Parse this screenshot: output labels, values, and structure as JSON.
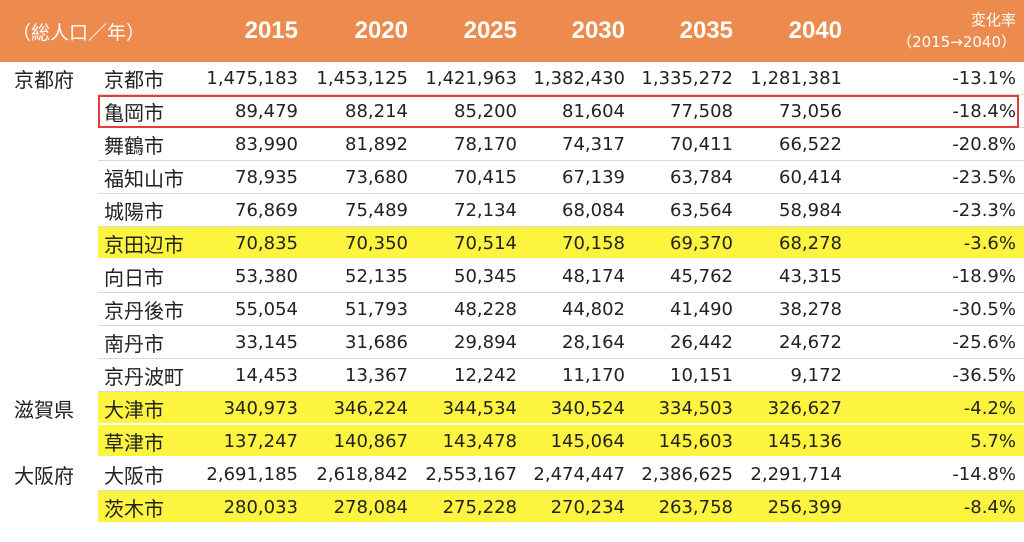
{
  "header": {
    "unit_label": "（総人口／年）",
    "years": [
      "2015",
      "2020",
      "2025",
      "2030",
      "2035",
      "2040"
    ],
    "change_label": "変化率",
    "change_range": "（2015→2040）"
  },
  "rows": [
    {
      "pref": "京都府",
      "city": "京都市",
      "values": [
        "1,475,183",
        "1,453,125",
        "1,421,963",
        "1,382,430",
        "1,335,272",
        "1,281,381"
      ],
      "change": "-13.1%",
      "highlight": false
    },
    {
      "pref": "",
      "city": "亀岡市",
      "values": [
        "89,479",
        "88,214",
        "85,200",
        "81,604",
        "77,508",
        "73,056"
      ],
      "change": "-18.4%",
      "highlight": false
    },
    {
      "pref": "",
      "city": "舞鶴市",
      "values": [
        "83,990",
        "81,892",
        "78,170",
        "74,317",
        "70,411",
        "66,522"
      ],
      "change": "-20.8%",
      "highlight": false
    },
    {
      "pref": "",
      "city": "福知山市",
      "values": [
        "78,935",
        "73,680",
        "70,415",
        "67,139",
        "63,784",
        "60,414"
      ],
      "change": "-23.5%",
      "highlight": false
    },
    {
      "pref": "",
      "city": "城陽市",
      "values": [
        "76,869",
        "75,489",
        "72,134",
        "68,084",
        "63,564",
        "58,984"
      ],
      "change": "-23.3%",
      "highlight": false
    },
    {
      "pref": "",
      "city": "京田辺市",
      "values": [
        "70,835",
        "70,350",
        "70,514",
        "70,158",
        "69,370",
        "68,278"
      ],
      "change": "-3.6%",
      "highlight": true
    },
    {
      "pref": "",
      "city": "向日市",
      "values": [
        "53,380",
        "52,135",
        "50,345",
        "48,174",
        "45,762",
        "43,315"
      ],
      "change": "-18.9%",
      "highlight": false
    },
    {
      "pref": "",
      "city": "京丹後市",
      "values": [
        "55,054",
        "51,793",
        "48,228",
        "44,802",
        "41,490",
        "38,278"
      ],
      "change": "-30.5%",
      "highlight": false
    },
    {
      "pref": "",
      "city": "南丹市",
      "values": [
        "33,145",
        "31,686",
        "29,894",
        "28,164",
        "26,442",
        "24,672"
      ],
      "change": "-25.6%",
      "highlight": false
    },
    {
      "pref": "",
      "city": "京丹波町",
      "values": [
        "14,453",
        "13,367",
        "12,242",
        "11,170",
        "10,151",
        "9,172"
      ],
      "change": "-36.5%",
      "highlight": false
    },
    {
      "pref": "滋賀県",
      "city": "大津市",
      "values": [
        "340,973",
        "346,224",
        "344,534",
        "340,524",
        "334,503",
        "326,627"
      ],
      "change": "-4.2%",
      "highlight": true
    },
    {
      "pref": "",
      "city": "草津市",
      "values": [
        "137,247",
        "140,867",
        "143,478",
        "145,064",
        "145,603",
        "145,136"
      ],
      "change": "5.7%",
      "highlight": true
    },
    {
      "pref": "大阪府",
      "city": "大阪市",
      "values": [
        "2,691,185",
        "2,618,842",
        "2,553,167",
        "2,474,447",
        "2,386,625",
        "2,291,714"
      ],
      "change": "-14.8%",
      "highlight": false
    },
    {
      "pref": "",
      "city": "茨木市",
      "values": [
        "280,033",
        "278,084",
        "275,228",
        "270,234",
        "263,758",
        "256,399"
      ],
      "change": "-8.4%",
      "highlight": true
    }
  ],
  "colors": {
    "header_bg": "#ed8a4d",
    "highlight": "#fcf43e",
    "focus_border": "#e53b3b"
  }
}
